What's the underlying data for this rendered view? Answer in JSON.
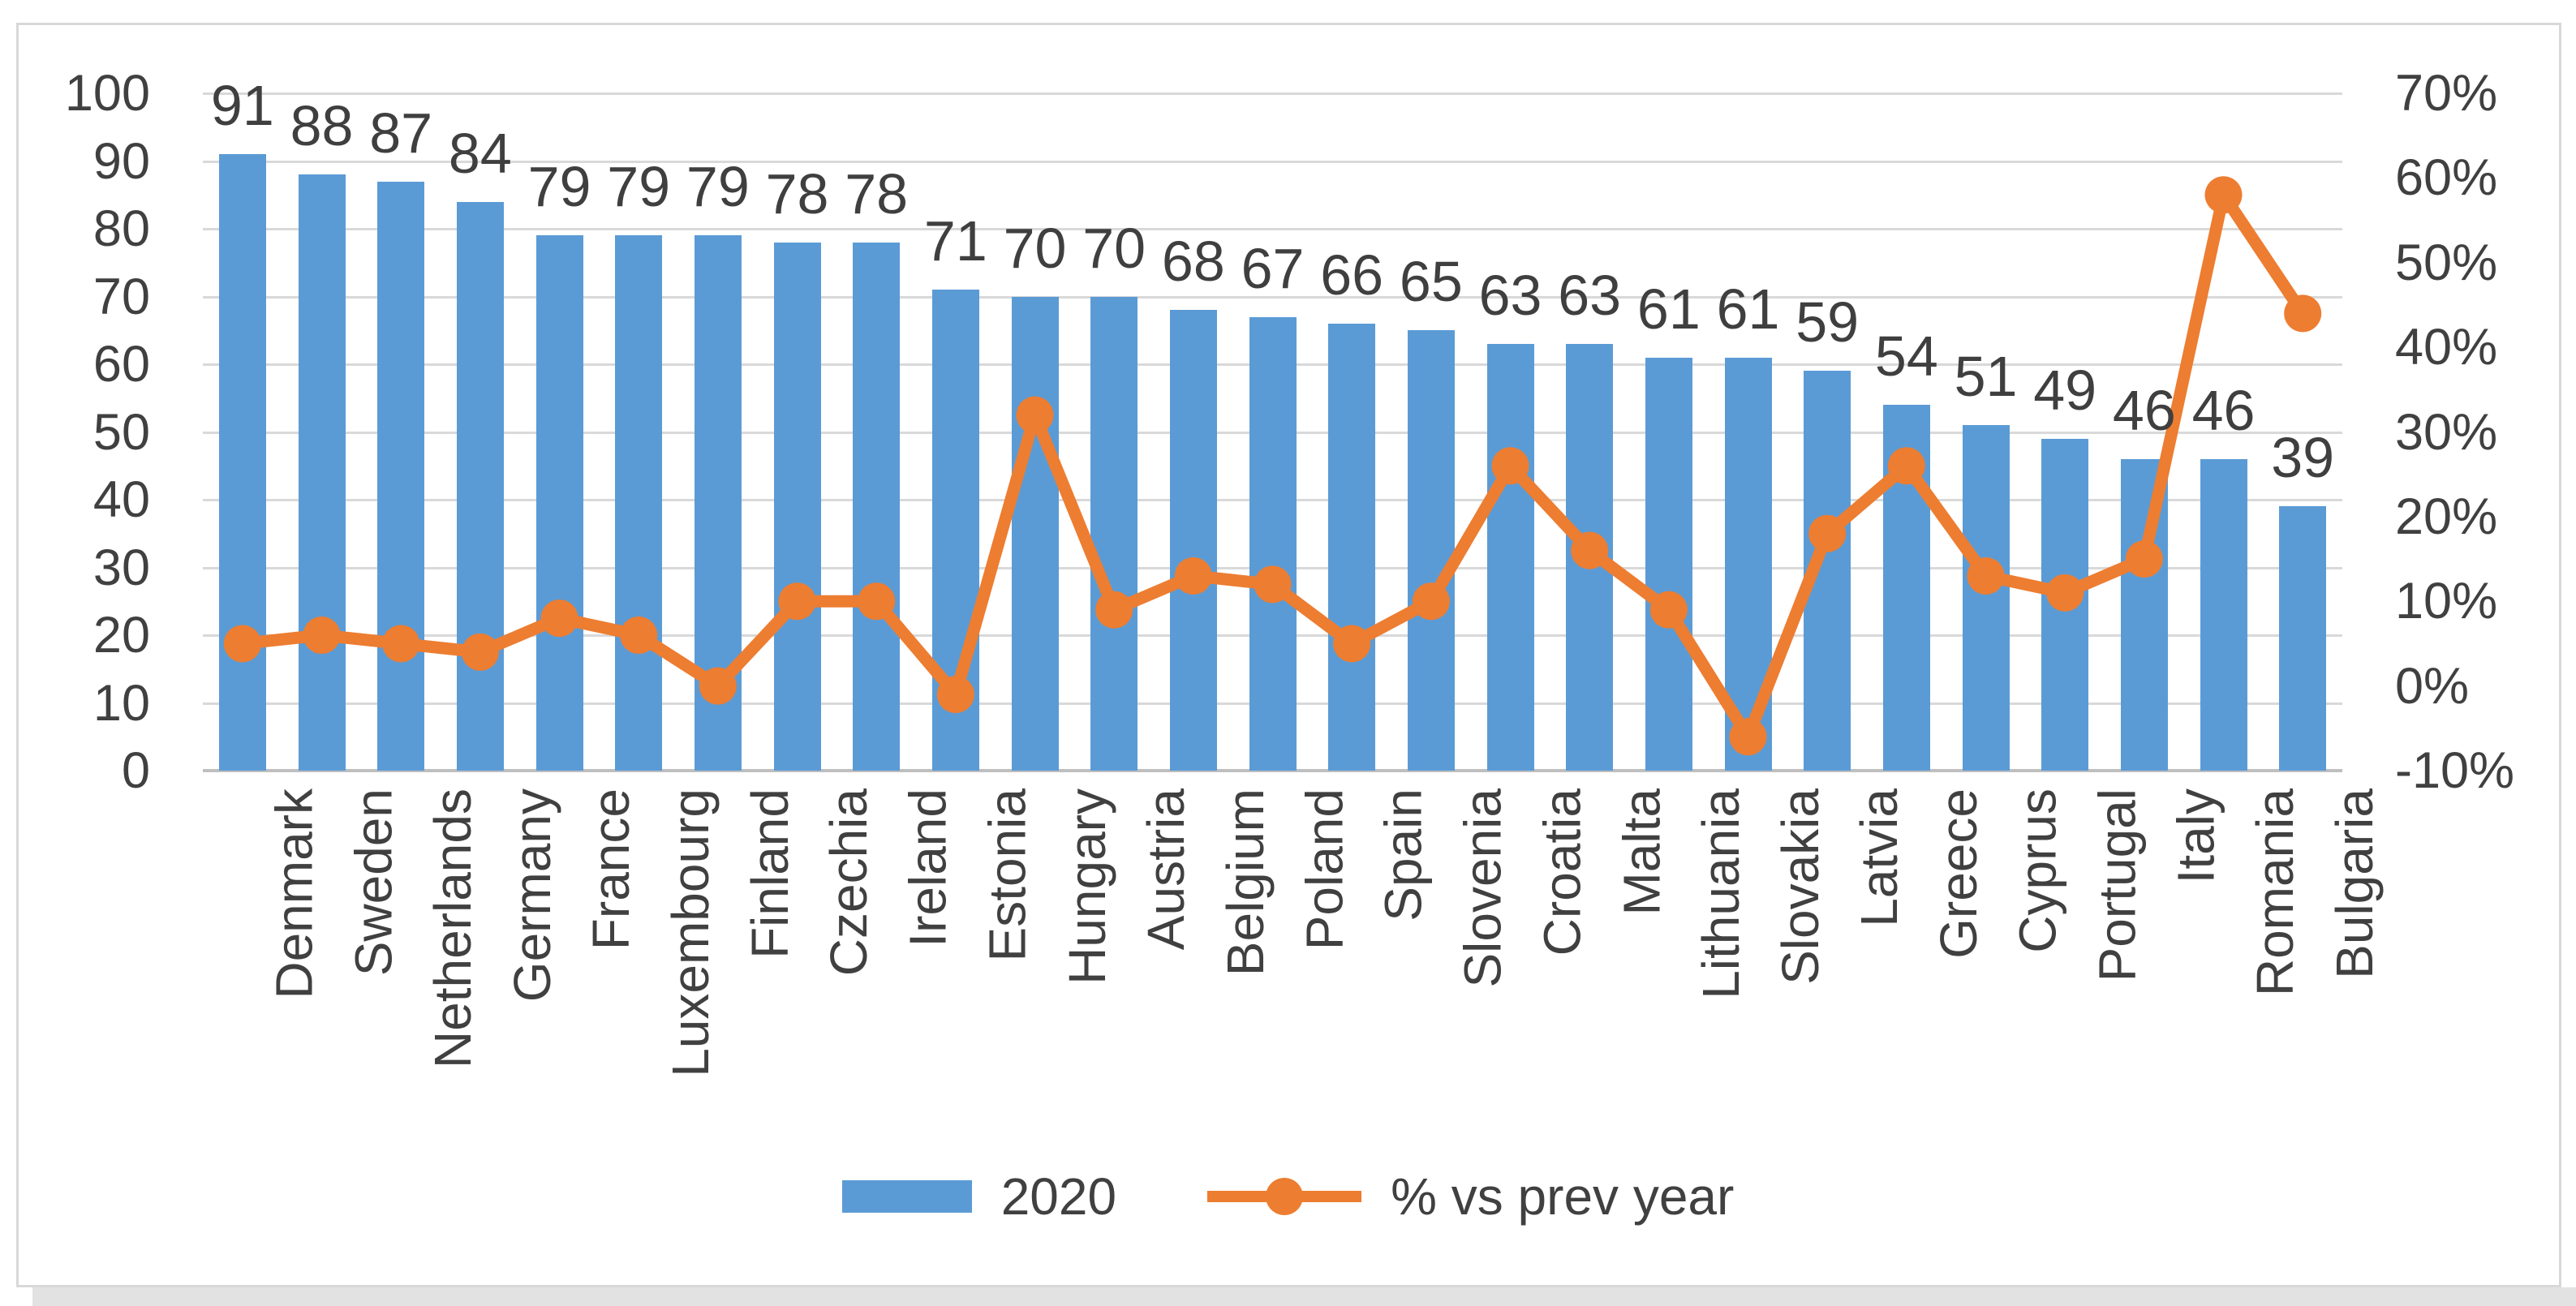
{
  "chart_data": {
    "type": "combo-bar-line",
    "title": "",
    "categories": [
      "Denmark",
      "Sweden",
      "Netherlands",
      "Germany",
      "France",
      "Luxembourg",
      "Finland",
      "Czechia",
      "Ireland",
      "Estonia",
      "Hungary",
      "Austria",
      "Belgium",
      "Poland",
      "Spain",
      "Slovenia",
      "Croatia",
      "Malta",
      "Lithuania",
      "Slovakia",
      "Latvia",
      "Greece",
      "Cyprus",
      "Portugal",
      "Italy",
      "Romania",
      "Bulgaria"
    ],
    "series": [
      {
        "name": "2020",
        "type": "bar",
        "axis": "left",
        "color": "#5B9BD5",
        "data_labels_shown": true,
        "values": [
          91,
          88,
          87,
          84,
          79,
          79,
          79,
          78,
          78,
          71,
          70,
          70,
          68,
          67,
          66,
          65,
          63,
          63,
          61,
          61,
          59,
          54,
          51,
          49,
          46,
          46,
          39
        ]
      },
      {
        "name": "% vs prev year",
        "type": "line",
        "axis": "right",
        "color": "#ED7D31",
        "data_labels_shown": false,
        "values": [
          5,
          6,
          5,
          4,
          8,
          6,
          0,
          10,
          10,
          -1,
          32,
          9,
          13,
          12,
          5,
          10,
          26,
          16,
          9,
          -6,
          18,
          26,
          13,
          11,
          15,
          58,
          44
        ]
      }
    ],
    "left_axis": {
      "min": 0,
      "max": 100,
      "step": 10,
      "labels": [
        "0",
        "10",
        "20",
        "30",
        "40",
        "50",
        "60",
        "70",
        "80",
        "90",
        "100"
      ]
    },
    "right_axis": {
      "min": -10,
      "max": 70,
      "step": 10,
      "labels": [
        "-10%",
        "0%",
        "10%",
        "20%",
        "30%",
        "40%",
        "50%",
        "60%",
        "70%"
      ]
    },
    "gridlines": "horizontal",
    "legend": {
      "position": "bottom",
      "items": [
        "2020",
        "% vs prev year"
      ]
    }
  },
  "colors": {
    "bar": "#5B9BD5",
    "line": "#ED7D31",
    "gridline": "#D9D9D9",
    "axis_line": "#BFBFBF",
    "text": "#404040",
    "chart_border": "#D8D8D8",
    "bottom_strip": "#E2E2E2"
  }
}
